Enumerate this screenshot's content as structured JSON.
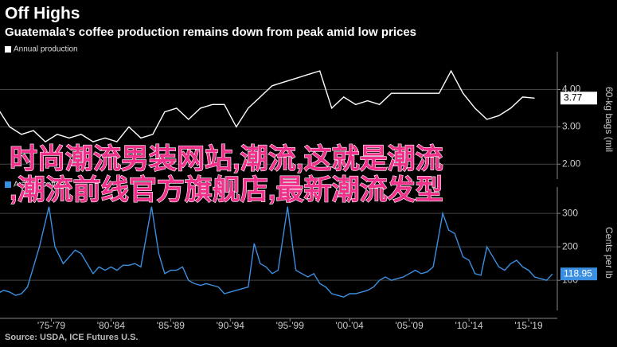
{
  "title": "Off Highs",
  "subtitle": "Guatemala's coffee production remains down from peak amid low prices",
  "overlay": [
    "时尚潮流男装网站,潮流,这就是潮流",
    ",潮流前线官方旗舰店,最新潮流发型"
  ],
  "source": "Source: USDA, ICE Futures U.S.",
  "chart_data": [
    {
      "type": "line",
      "y_label": "60-kg bags (mil",
      "xlim": [
        1973.2,
        2019.9
      ],
      "ylim": [
        1.6,
        4.8
      ],
      "yticks": [
        {
          "value": 2,
          "label": "2.00"
        },
        {
          "value": 3,
          "label": "3.00"
        },
        {
          "value": 4,
          "label": "4.00"
        }
      ],
      "grid": true,
      "x": [
        1973,
        1974,
        1975,
        1976,
        1977,
        1978,
        1979,
        1980,
        1981,
        1982,
        1983,
        1984,
        1985,
        1986,
        1987,
        1988,
        1989,
        1990,
        1991,
        1992,
        1993,
        1994,
        1995,
        1996,
        1997,
        1998,
        1999,
        2000,
        2001,
        2002,
        2003,
        2004,
        2005,
        2006,
        2007,
        2008,
        2009,
        2010,
        2011,
        2012,
        2013,
        2014,
        2015,
        2016,
        2017,
        2018
      ],
      "series": [
        {
          "name": "Annual production",
          "color": "#ffffff",
          "values": [
            3.5,
            3.0,
            2.8,
            2.9,
            2.6,
            2.8,
            2.7,
            2.8,
            2.6,
            2.7,
            2.6,
            3.0,
            2.7,
            2.8,
            3.4,
            3.5,
            3.2,
            3.5,
            3.6,
            3.6,
            3.0,
            3.5,
            3.8,
            4.1,
            4.2,
            4.3,
            4.4,
            4.5,
            3.5,
            3.8,
            3.6,
            3.7,
            3.6,
            3.9,
            3.9,
            3.9,
            3.9,
            3.9,
            4.5,
            3.9,
            3.5,
            3.2,
            3.3,
            3.5,
            3.8,
            3.77
          ]
        }
      ]
    },
    {
      "type": "line",
      "y_label": "Cents per lb",
      "xlim": [
        1973.2,
        2019.9
      ],
      "ylim": [
        10,
        355
      ],
      "yticks": [
        100,
        200,
        300
      ],
      "grid": true,
      "xticks": [
        {
          "value": 1977.5,
          "label": "'75-'79"
        },
        {
          "value": 1982.5,
          "label": "'80-'84"
        },
        {
          "value": 1987.5,
          "label": "'85-'89"
        },
        {
          "value": 1992.5,
          "label": "'90-'94"
        },
        {
          "value": 1997.5,
          "label": "'95-'99"
        },
        {
          "value": 2002.5,
          "label": "'00-'04"
        },
        {
          "value": 2007.5,
          "label": "'05-'09"
        },
        {
          "value": 2012.5,
          "label": "'10-'14"
        },
        {
          "value": 2017.5,
          "label": "'15-'19"
        }
      ],
      "x": [
        1973,
        1973.5,
        1974,
        1974.5,
        1975,
        1975.5,
        1976,
        1976.5,
        1977.3,
        1977.8,
        1978.5,
        1979,
        1979.5,
        1980,
        1980.5,
        1981,
        1981.5,
        1982,
        1982.5,
        1983,
        1983.5,
        1984,
        1984.5,
        1985,
        1985.9,
        1986.5,
        1987,
        1987.5,
        1988,
        1988.5,
        1989,
        1989.5,
        1990,
        1990.5,
        1991,
        1991.5,
        1992,
        1992.5,
        1993,
        1993.5,
        1994,
        1994.5,
        1995,
        1995.5,
        1996,
        1996.5,
        1997.3,
        1997.8,
        1998,
        1998.5,
        1999,
        1999.5,
        2000,
        2000.5,
        2001,
        2001.5,
        2002,
        2002.5,
        2003,
        2003.5,
        2004,
        2004.5,
        2005,
        2005.5,
        2006,
        2006.5,
        2007,
        2007.5,
        2008,
        2008.5,
        2009,
        2009.5,
        2010.3,
        2010.8,
        2011.3,
        2012,
        2012.5,
        2013,
        2013.5,
        2014,
        2014.5,
        2015,
        2015.5,
        2016,
        2016.5,
        2017,
        2017.5,
        2018,
        2018.5,
        2019,
        2019.5
      ],
      "series": [
        {
          "name": "Arabica coffee",
          "color": "#3b8fe0",
          "values": [
            60,
            70,
            65,
            55,
            60,
            80,
            140,
            200,
            320,
            200,
            150,
            170,
            190,
            180,
            150,
            120,
            140,
            130,
            140,
            130,
            145,
            145,
            150,
            140,
            320,
            180,
            120,
            130,
            130,
            140,
            100,
            90,
            85,
            90,
            85,
            80,
            60,
            65,
            70,
            75,
            80,
            210,
            150,
            140,
            120,
            130,
            320,
            180,
            130,
            120,
            110,
            120,
            90,
            80,
            60,
            55,
            50,
            60,
            60,
            65,
            70,
            80,
            100,
            110,
            100,
            105,
            110,
            120,
            130,
            120,
            125,
            140,
            300,
            250,
            240,
            170,
            160,
            120,
            115,
            200,
            170,
            140,
            130,
            150,
            160,
            140,
            130,
            110,
            105,
            100,
            118.95
          ]
        }
      ]
    }
  ]
}
